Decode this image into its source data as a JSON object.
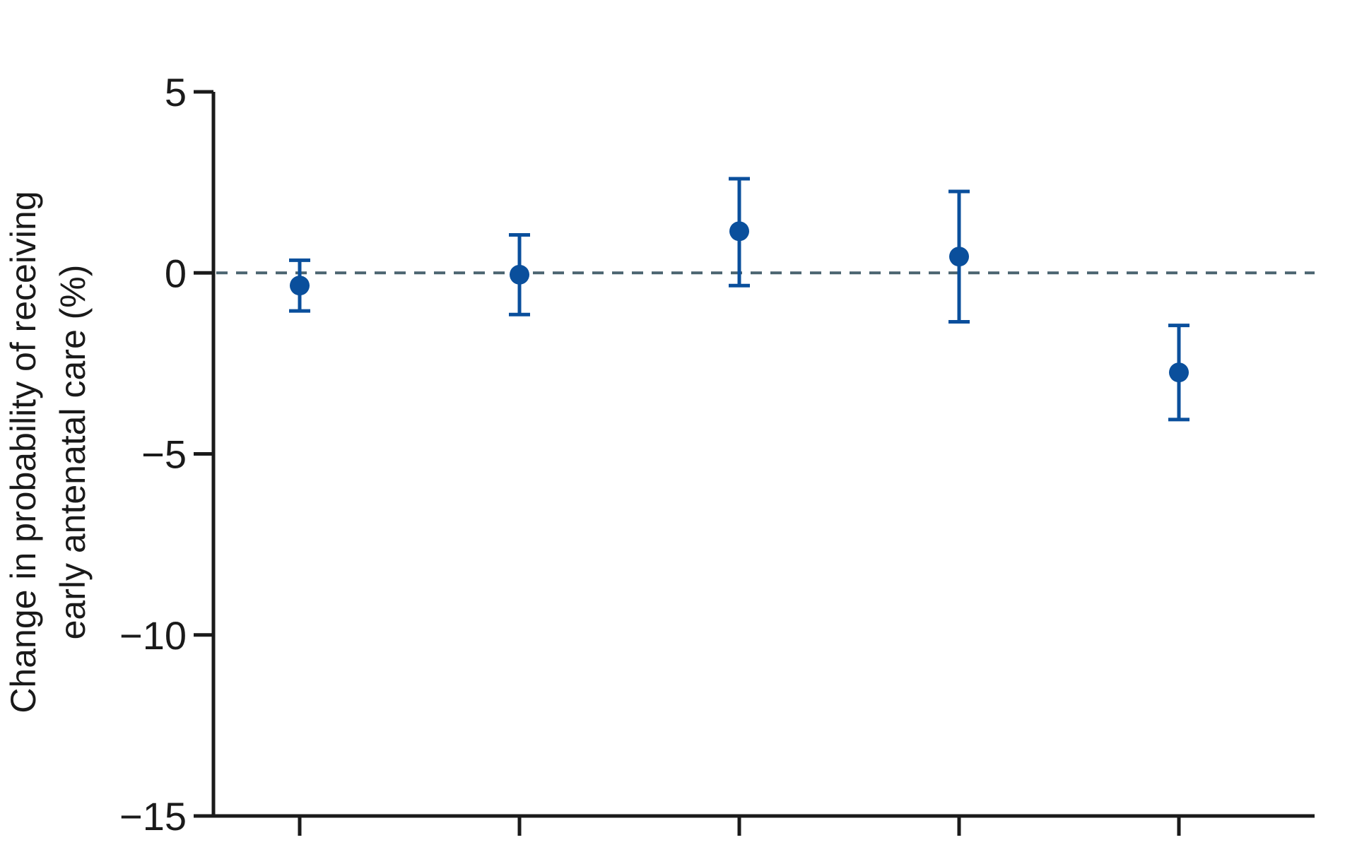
{
  "chart_data": {
    "type": "scatter",
    "ylabel_line1": "Change in probability of receiving",
    "ylabel_line2": "early antenatal care (%)",
    "ylim": [
      -15,
      5
    ],
    "yticks": [
      5,
      0,
      -5,
      -10,
      -15
    ],
    "ytick_labels": [
      "5",
      "0",
      "−5",
      "−10",
      "−15"
    ],
    "x_positions": [
      1,
      2,
      3,
      4,
      5
    ],
    "reference_line": 0,
    "reference_style": "dashed",
    "grid": false,
    "series": [
      {
        "points": [
          {
            "x": 1,
            "y": -0.35,
            "lower": -1.05,
            "upper": 0.35
          },
          {
            "x": 2,
            "y": -0.05,
            "lower": -1.15,
            "upper": 1.05
          },
          {
            "x": 3,
            "y": 1.15,
            "lower": -0.35,
            "upper": 2.6
          },
          {
            "x": 4,
            "y": 0.45,
            "lower": -1.35,
            "upper": 2.25
          },
          {
            "x": 5,
            "y": -2.75,
            "lower": -4.05,
            "upper": -1.45
          }
        ]
      }
    ],
    "colors": {
      "points": "#0a4f9c",
      "reference": "#4b6470",
      "axis": "#1a1a1a"
    }
  }
}
